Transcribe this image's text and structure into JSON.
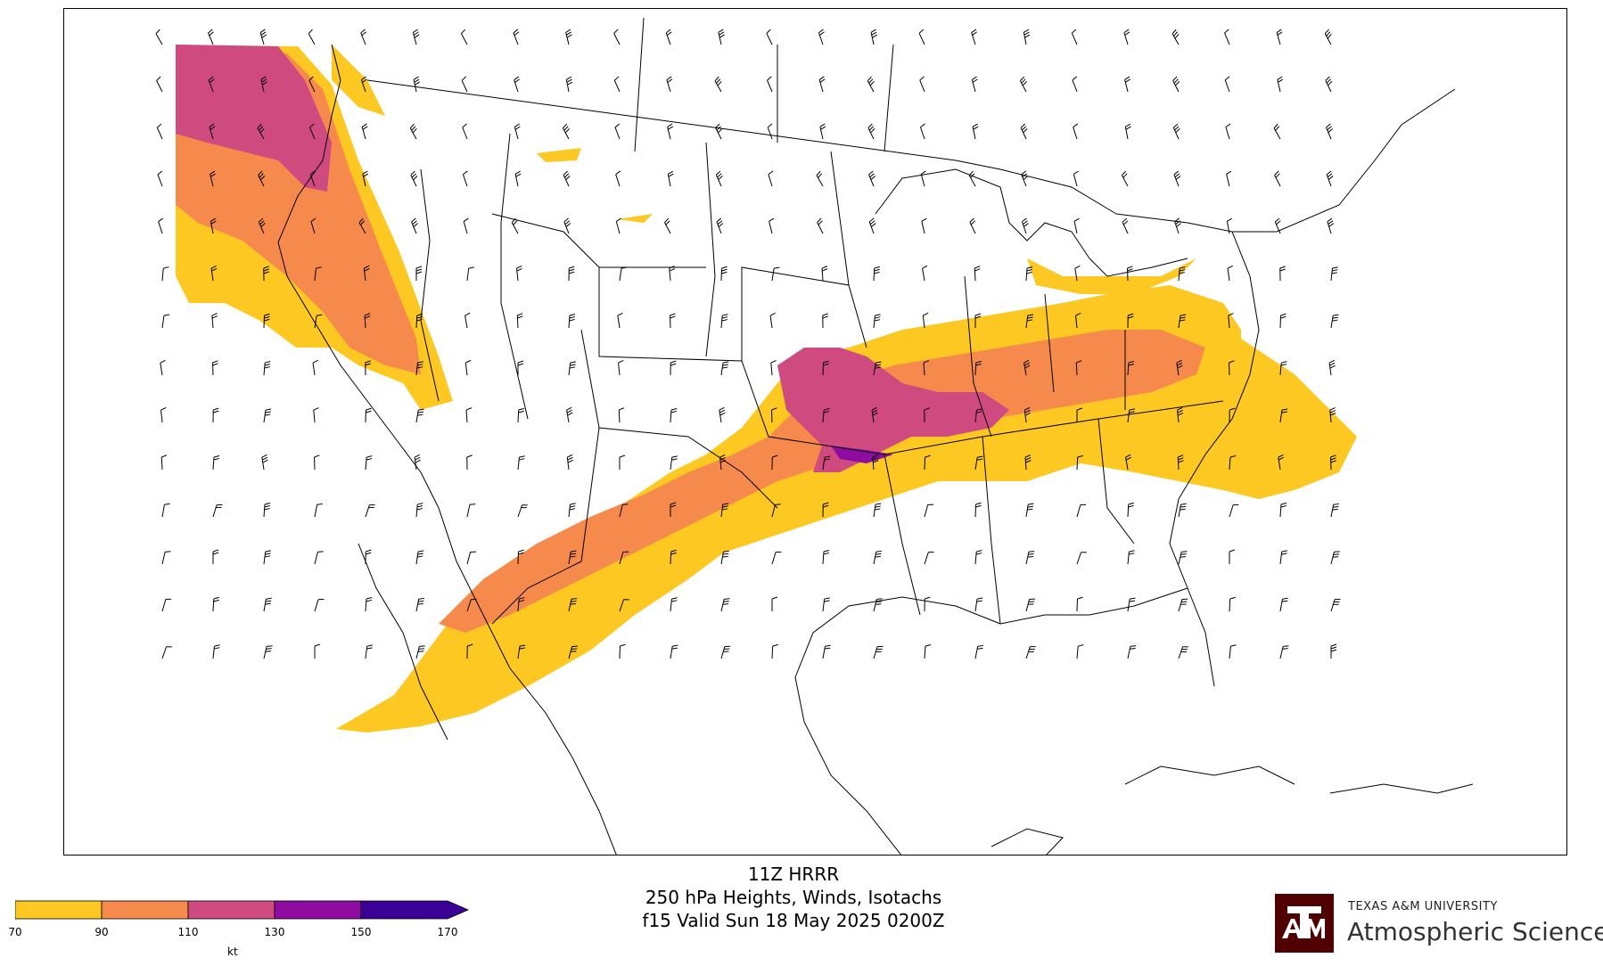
{
  "title": {
    "line1": "11Z HRRR",
    "line2": "250 hPa Heights, Winds, Isotachs",
    "line3": "f15 Valid Sun 18 May 2025 0200Z"
  },
  "colorbar": {
    "ticks": [
      "70",
      "90",
      "110",
      "130",
      "150",
      "170"
    ],
    "unit": "kt",
    "colors": [
      "#fcc821",
      "#f68a4c",
      "#cf4a7f",
      "#8e0c9f",
      "#3b0096"
    ],
    "extend": "max"
  },
  "logo": {
    "university": "TEXAS A&M UNIVERSITY",
    "department": "Atmospheric Sciences",
    "brand_color": "#500000"
  },
  "map": {
    "region": "Contiguous United States, southern Canada, northern Mexico, Caribbean",
    "land_fill": "#ffffff",
    "outline_color": "#000000",
    "isotach_levels": [
      70,
      90,
      110,
      130,
      150
    ],
    "wind_barb_icon": "wind-barb-icon"
  }
}
